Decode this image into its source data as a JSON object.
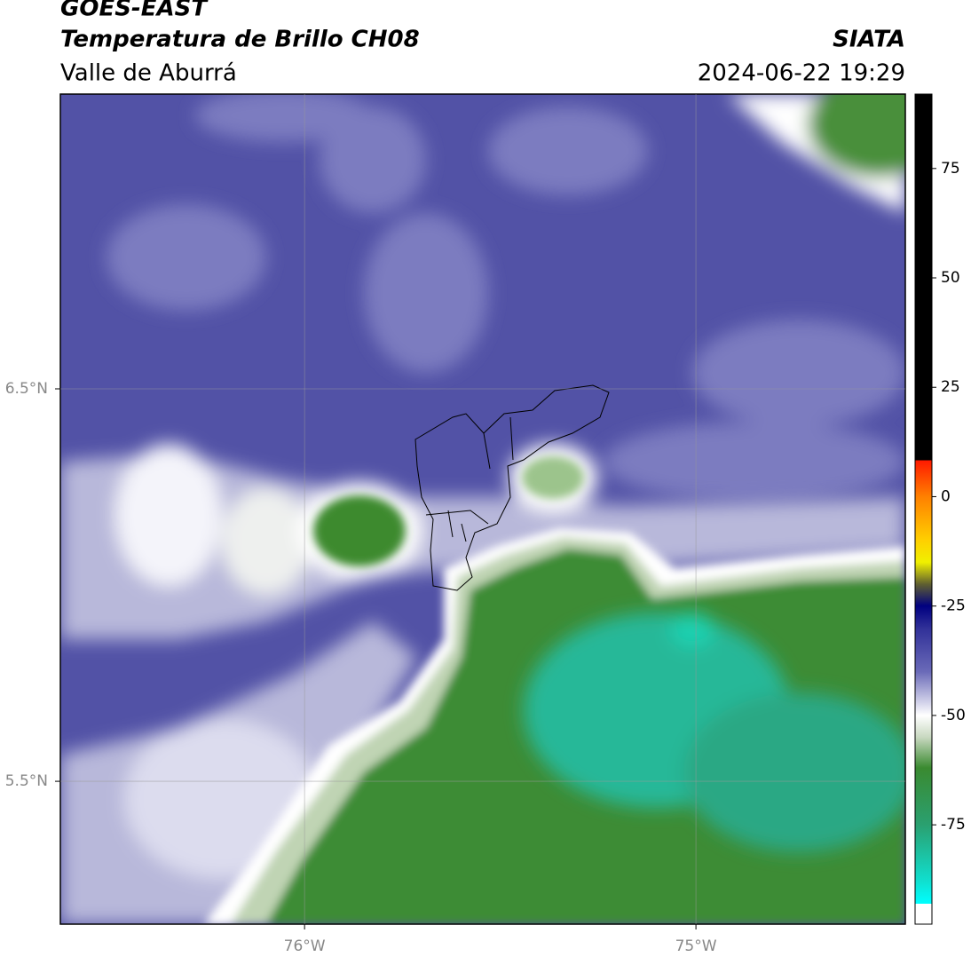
{
  "header": {
    "title": "GOES-EAST",
    "subtitle": "Temperatura de Brillo CH08",
    "region": "Valle de Aburrá",
    "source": "SIATA",
    "datetime": "2024-06-22 19:29"
  },
  "map": {
    "xlim": [
      -76.624,
      -74.465
    ],
    "ylim": [
      5.136,
      7.251
    ],
    "xticks": [
      {
        "value": -76,
        "label": "76°W"
      },
      {
        "value": -75,
        "label": "75°W"
      }
    ],
    "yticks": [
      {
        "value": 6.5,
        "label": "6.5°N"
      },
      {
        "value": 5.5,
        "label": "5.5°N"
      }
    ],
    "grid": true
  },
  "colorbar": {
    "lim": [
      -97.7,
      92
    ],
    "ticks": [
      75,
      50,
      25,
      0,
      -25,
      -50,
      -75
    ],
    "stops": [
      {
        "value": 92,
        "color": "#000000"
      },
      {
        "value": 8.3,
        "color": "#000000"
      },
      {
        "value": 8.3,
        "color": "#ff1a00"
      },
      {
        "value": 0,
        "color": "#ff8000"
      },
      {
        "value": -10,
        "color": "#ffd000"
      },
      {
        "value": -15,
        "color": "#f0f000"
      },
      {
        "value": -20,
        "color": "#606030"
      },
      {
        "value": -25,
        "color": "#000080"
      },
      {
        "value": -30,
        "color": "#303098"
      },
      {
        "value": -40,
        "color": "#6a6ab8"
      },
      {
        "value": -50,
        "color": "#ffffff"
      },
      {
        "value": -55,
        "color": "#c8d8c0"
      },
      {
        "value": -62,
        "color": "#3a8a30"
      },
      {
        "value": -75,
        "color": "#2aa070"
      },
      {
        "value": -88,
        "color": "#10e0d0"
      },
      {
        "value": -93,
        "color": "#00ffff"
      },
      {
        "value": -93,
        "color": "#ffffff"
      },
      {
        "value": -97.7,
        "color": "#ffffff"
      }
    ]
  }
}
